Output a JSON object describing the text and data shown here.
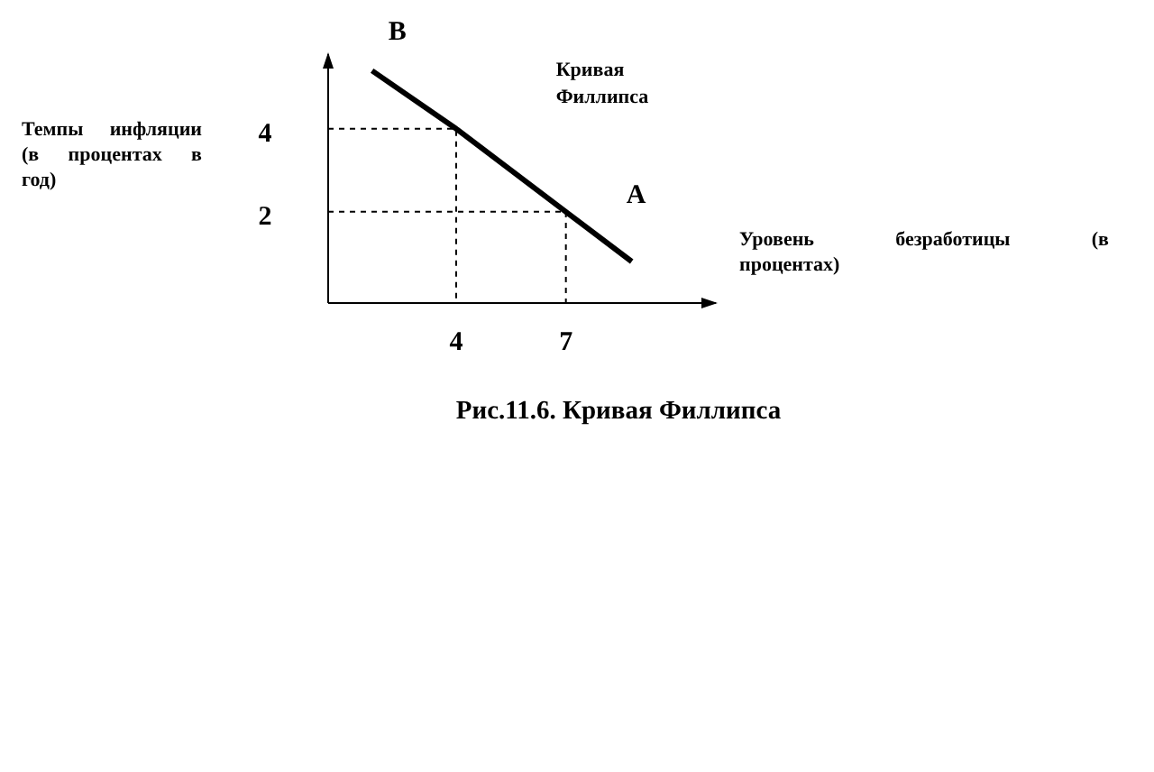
{
  "chart_data": {
    "type": "line",
    "title": "Рис.11.6. Кривая Филлипса",
    "xlabel": "Уровень безработицы (в процентах)",
    "ylabel": "Темпы инфляции (в процентах в год)",
    "annotations": [
      {
        "text": "B",
        "x": 1.7,
        "y": 5.4
      },
      {
        "text": "A",
        "x": 7,
        "y": 2
      }
    ],
    "xlim": [
      0.5,
      11.1
    ],
    "ylim": [
      -0.2,
      5.8
    ],
    "xticks": [
      4,
      7
    ],
    "yticks": [
      2,
      4
    ],
    "marker": "none",
    "series": [
      {
        "name": "Кривая Филлипса",
        "color": "#000000",
        "x": [
          1.7,
          4,
          7,
          8.8
        ],
        "values": [
          5.4,
          4,
          2,
          0.8
        ]
      },
      {
        "color": "#000000",
        "x": [
          0.5,
          4,
          4
        ],
        "values": [
          4,
          4,
          -0.2
        ],
        "line_style": "dashed"
      },
      {
        "color": "#000000",
        "x": [
          0.5,
          7,
          7
        ],
        "values": [
          2,
          2,
          -0.2
        ],
        "line_style": "dashed"
      }
    ]
  }
}
